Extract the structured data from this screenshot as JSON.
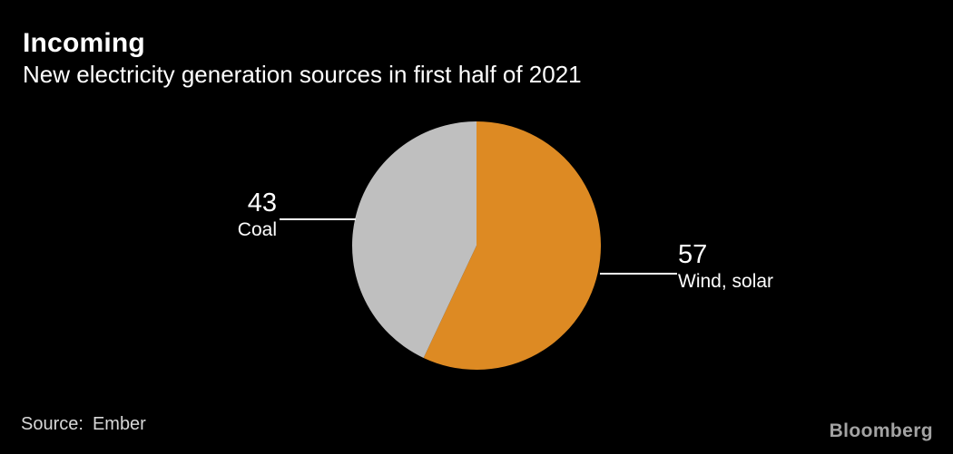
{
  "header": {
    "title": "Incoming",
    "subtitle": "New electricity generation sources in first half of 2021"
  },
  "chart_data": {
    "type": "pie",
    "title": "Incoming",
    "subtitle": "New electricity generation sources in first half of 2021",
    "unit": "percent",
    "start_angle_deg": 0,
    "direction": "clockwise",
    "slices": [
      {
        "label": "Wind, solar",
        "value": 57,
        "color": "#DD8A23"
      },
      {
        "label": "Coal",
        "value": 43,
        "color": "#BFBFBF"
      }
    ],
    "callout_line_color": "#FFFFFF",
    "background": "#000000",
    "legend": "none",
    "labels": "external callouts with value above leader line and name below"
  },
  "footer": {
    "source_label": "Source:",
    "source_value": "Ember",
    "brand": "Bloomberg"
  },
  "colors": {
    "background": "#000000",
    "title_text": "#FFFFFF",
    "label_text": "#FFFFFF",
    "source_text": "#D8D8D8",
    "brand_text": "#A3A3A3"
  }
}
